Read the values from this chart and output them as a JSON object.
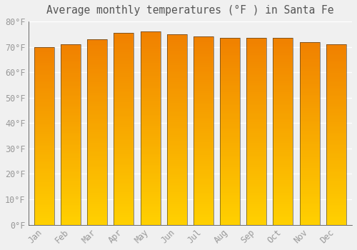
{
  "title": "Average monthly temperatures (°F ) in Santa Fe",
  "months": [
    "Jan",
    "Feb",
    "Mar",
    "Apr",
    "May",
    "Jun",
    "Jul",
    "Aug",
    "Sep",
    "Oct",
    "Nov",
    "Dec"
  ],
  "values": [
    70,
    71,
    73,
    75.5,
    76,
    75,
    74,
    73.5,
    73.5,
    73.5,
    72,
    71
  ],
  "bar_color_bottom": "#FFD000",
  "bar_color_top": "#F08000",
  "ylim": [
    0,
    80
  ],
  "yticks": [
    0,
    10,
    20,
    30,
    40,
    50,
    60,
    70,
    80
  ],
  "ytick_labels": [
    "0°F",
    "10°F",
    "20°F",
    "30°F",
    "40°F",
    "50°F",
    "60°F",
    "70°F",
    "80°F"
  ],
  "background_color": "#f0f0f0",
  "grid_color": "#ffffff",
  "tick_label_color": "#999999",
  "title_color": "#555555",
  "title_fontsize": 10.5,
  "tick_fontsize": 8.5,
  "bar_width": 0.75,
  "n_gradient_segments": 100
}
